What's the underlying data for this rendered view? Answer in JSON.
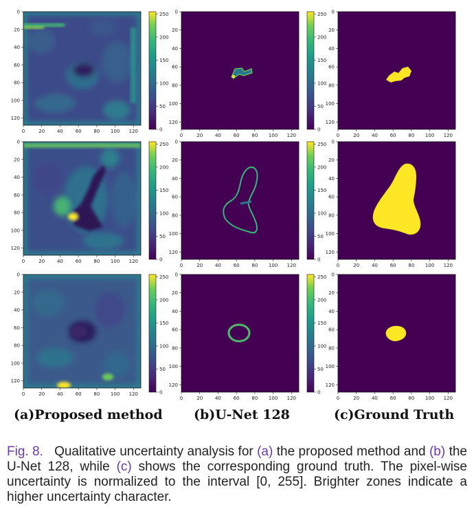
{
  "figure": {
    "colormap": "viridis",
    "colors": {
      "background": "#440154",
      "mask": "#fde725",
      "caption_accent": "#6a3aa6"
    },
    "axis_ticks": [
      "0",
      "20",
      "40",
      "60",
      "80",
      "100",
      "120"
    ],
    "colorbar_ticks": [
      "0",
      "50",
      "100",
      "150",
      "200",
      "250"
    ],
    "columns": [
      {
        "label": "(a)Proposed method"
      },
      {
        "label": "(b)U-Net 128"
      },
      {
        "label": "(c)Ground Truth"
      }
    ],
    "rows": [
      {
        "row": 1,
        "panels": [
          "uncertainty-map",
          "unet-uncertainty-outline-small",
          "mask-small-region"
        ]
      },
      {
        "row": 2,
        "panels": [
          "uncertainty-map",
          "unet-uncertainty-outline-large",
          "mask-large-region"
        ]
      },
      {
        "row": 3,
        "panels": [
          "uncertainty-map",
          "unet-uncertainty-ring",
          "mask-small-blob"
        ]
      }
    ]
  },
  "caption": {
    "prefix": "Fig. 8.",
    "t1": "Qualitative uncertainty analysis for ",
    "a": "(a)",
    "t2": " the proposed method and ",
    "b": "(b)",
    "t3": " the U-Net 128, while ",
    "c": "(c)",
    "t4": " shows the corresponding ground truth. The pixel-wise uncertainty is normalized to the interval [0, 255]. Brighter zones indicate a higher uncertainty character."
  }
}
